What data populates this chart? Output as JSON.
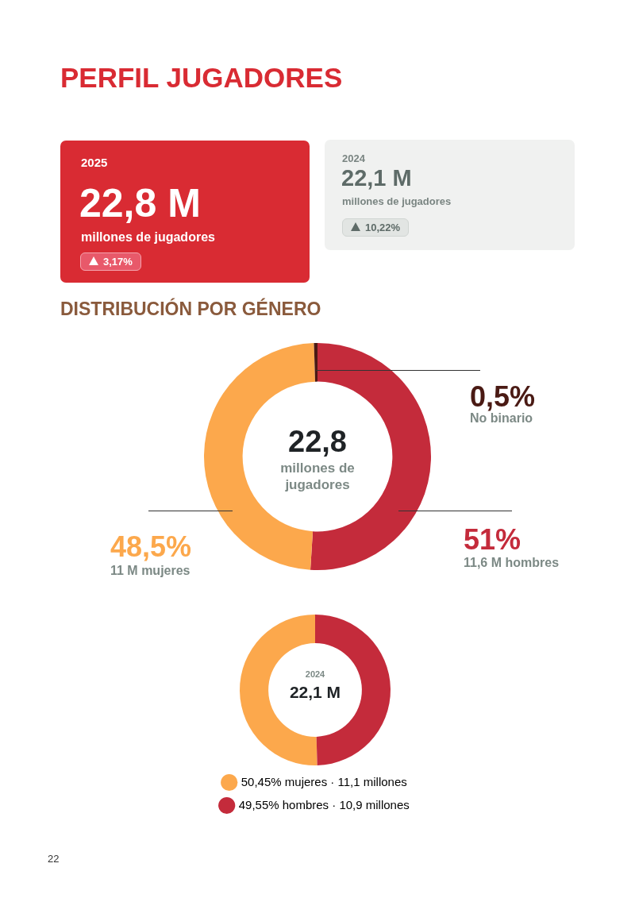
{
  "chart_data": [
    {
      "type": "other",
      "title": "PERFIL JUGADORES",
      "annotations": [
        "2025",
        "22,8 M",
        "millones de jugadores",
        "3,17%",
        "2024",
        "22,1 M",
        "millones de jugadores",
        "10,22%",
        "22"
      ]
    },
    {
      "type": "donut",
      "title": "DISTRIBUCIÓN POR GÉNERO",
      "categories": [
        "11,6 M hombres",
        "11 M mujeres",
        "No binario"
      ],
      "values": [
        51,
        48.5,
        0.5
      ],
      "colors": [
        "#c42b3b",
        "#fca84c",
        "#4a1a14"
      ],
      "value_labels": [
        "51%",
        "48,5%",
        "0,5%"
      ],
      "annotations": [
        "22,8",
        "millones de jugadores"
      ],
      "legend": false
    },
    {
      "type": "donut",
      "categories": [
        "mujeres · 11,1 millones",
        "hombres · 10,9 millones"
      ],
      "values": [
        50.45,
        49.55
      ],
      "colors": [
        "#fca84c",
        "#c42b3b"
      ],
      "value_labels": [
        "50,45%",
        "49,55%"
      ],
      "annotations": [
        "2024",
        "22,1 M"
      ],
      "legend": "bottom"
    }
  ]
}
